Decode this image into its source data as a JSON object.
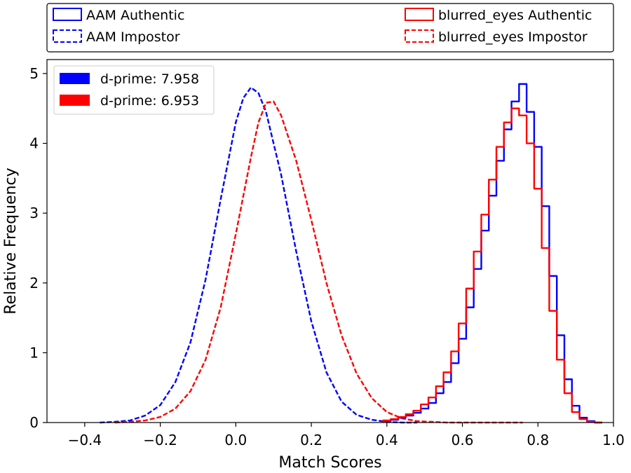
{
  "chart_data": {
    "type": "histogram",
    "xlabel": "Match Scores",
    "ylabel": "Relative Frequency",
    "xlim": [
      -0.5,
      1.0
    ],
    "ylim": [
      0,
      5.2
    ],
    "x_ticks": [
      -0.4,
      -0.2,
      0.0,
      0.2,
      0.4,
      0.6,
      0.8,
      1.0
    ],
    "x_tick_labels": [
      "−0.4",
      "−0.2",
      "0.0",
      "0.2",
      "0.4",
      "0.6",
      "0.8",
      "1.0"
    ],
    "y_ticks": [
      0,
      1,
      2,
      3,
      4,
      5
    ],
    "y_tick_labels": [
      "0",
      "1",
      "2",
      "3",
      "4",
      "5"
    ],
    "grid": false,
    "top_legend": {
      "placement": "above-plot",
      "entries": [
        {
          "label": "AAM Authentic",
          "color": "#0000ff",
          "style": "solid"
        },
        {
          "label": "AAM Impostor",
          "color": "#0000ff",
          "style": "dashed"
        },
        {
          "label": "blurred_eyes Authentic",
          "color": "#ff0000",
          "style": "solid"
        },
        {
          "label": "blurred_eyes Impostor",
          "color": "#ff0000",
          "style": "dashed"
        }
      ]
    },
    "inner_legend": {
      "placement": "top-left",
      "entries": [
        {
          "label": "d-prime: 7.958",
          "color": "#0000ff"
        },
        {
          "label": "d-prime: 6.953",
          "color": "#ff0000"
        }
      ]
    },
    "series": [
      {
        "group": "AAM",
        "kind": "Impostor",
        "color": "#0000ff",
        "style": "dashed",
        "x": [
          -0.36,
          -0.32,
          -0.28,
          -0.24,
          -0.2,
          -0.16,
          -0.12,
          -0.08,
          -0.04,
          0.0,
          0.02,
          0.04,
          0.06,
          0.08,
          0.12,
          0.16,
          0.2,
          0.24,
          0.28,
          0.32,
          0.36,
          0.4,
          0.44,
          0.48
        ],
        "y": [
          0.0,
          0.01,
          0.03,
          0.1,
          0.25,
          0.58,
          1.15,
          2.05,
          3.2,
          4.3,
          4.65,
          4.8,
          4.72,
          4.45,
          3.55,
          2.45,
          1.45,
          0.72,
          0.3,
          0.11,
          0.04,
          0.01,
          0.0,
          0.0
        ]
      },
      {
        "group": "blurred_eyes",
        "kind": "Impostor",
        "color": "#ff0000",
        "style": "dashed",
        "x": [
          -0.32,
          -0.28,
          -0.24,
          -0.2,
          -0.16,
          -0.12,
          -0.08,
          -0.04,
          0.0,
          0.04,
          0.06,
          0.08,
          0.1,
          0.12,
          0.16,
          0.2,
          0.24,
          0.28,
          0.32,
          0.36,
          0.4,
          0.44,
          0.48,
          0.52,
          0.56,
          0.6,
          0.64,
          0.68,
          0.72,
          0.76
        ],
        "y": [
          0.0,
          0.01,
          0.03,
          0.08,
          0.2,
          0.45,
          0.9,
          1.65,
          2.7,
          3.8,
          4.3,
          4.58,
          4.6,
          4.4,
          3.75,
          2.9,
          2.0,
          1.25,
          0.7,
          0.35,
          0.15,
          0.06,
          0.02,
          0.01,
          0.0,
          0.0,
          0.0,
          0.0,
          0.0,
          0.0
        ]
      },
      {
        "group": "AAM",
        "kind": "Authentic",
        "color": "#0000ff",
        "style": "solid",
        "x": [
          0.4,
          0.42,
          0.44,
          0.46,
          0.48,
          0.5,
          0.52,
          0.54,
          0.56,
          0.58,
          0.6,
          0.62,
          0.64,
          0.66,
          0.68,
          0.7,
          0.72,
          0.74,
          0.76,
          0.78,
          0.8,
          0.82,
          0.84,
          0.86,
          0.88,
          0.9,
          0.92,
          0.94,
          0.96
        ],
        "y": [
          0.02,
          0.04,
          0.07,
          0.1,
          0.14,
          0.2,
          0.28,
          0.42,
          0.58,
          0.85,
          1.2,
          1.65,
          2.2,
          2.75,
          3.25,
          3.75,
          4.2,
          4.6,
          4.85,
          4.45,
          3.95,
          3.1,
          2.1,
          1.25,
          0.62,
          0.24,
          0.07,
          0.02,
          0.0
        ]
      },
      {
        "group": "blurred_eyes",
        "kind": "Authentic",
        "color": "#ff0000",
        "style": "solid",
        "x": [
          0.4,
          0.42,
          0.44,
          0.46,
          0.48,
          0.5,
          0.52,
          0.54,
          0.56,
          0.58,
          0.6,
          0.62,
          0.64,
          0.66,
          0.68,
          0.7,
          0.72,
          0.74,
          0.76,
          0.78,
          0.8,
          0.82,
          0.84,
          0.86,
          0.88,
          0.9,
          0.92,
          0.94,
          0.96
        ],
        "y": [
          0.03,
          0.05,
          0.08,
          0.12,
          0.17,
          0.26,
          0.36,
          0.52,
          0.72,
          1.02,
          1.42,
          1.92,
          2.45,
          2.98,
          3.48,
          3.95,
          4.3,
          4.5,
          4.4,
          4.0,
          3.35,
          2.5,
          1.6,
          0.9,
          0.42,
          0.15,
          0.05,
          0.01,
          0.0
        ]
      }
    ]
  }
}
